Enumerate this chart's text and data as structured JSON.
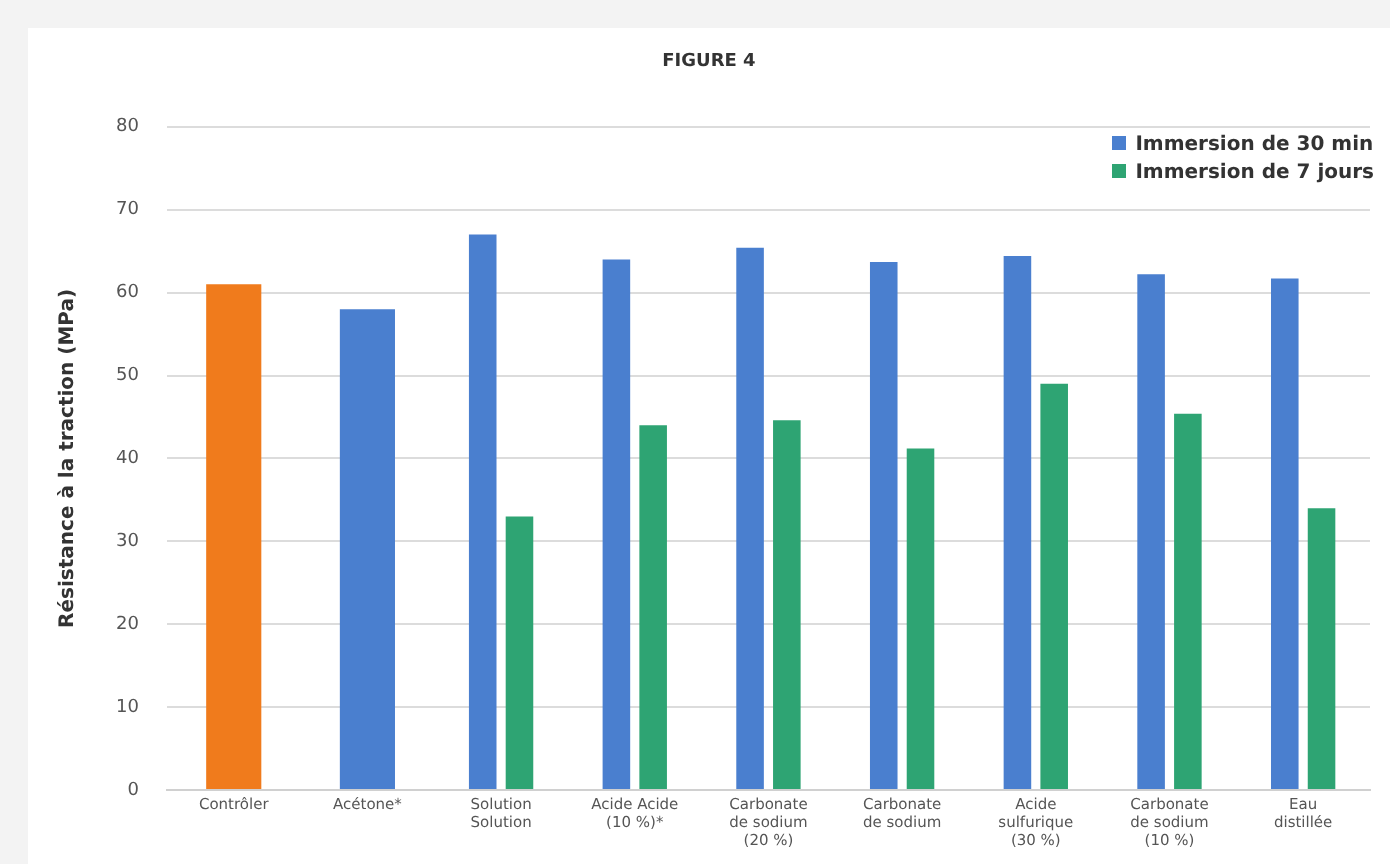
{
  "chart_data": {
    "type": "bar",
    "title": "FIGURE 4",
    "ylabel": "Résistance à la traction (MPa)",
    "categories": [
      "Contrôler",
      "Acétone*",
      "Solution Solution",
      "Acide Acide (10 %)*",
      "Carbonate de sodium (20 %)",
      "Carbonate de sodium",
      "Acide sulfurique (30 %)",
      "Carbonate de sodium (10 %)",
      "Eau distillée"
    ],
    "series": [
      {
        "name": "Immersion de 30 min",
        "color": "#4a7fcf",
        "colors": [
          "#f07b1c",
          "#4a7fcf",
          "#4a7fcf",
          "#4a7fcf",
          "#4a7fcf",
          "#4a7fcf",
          "#4a7fcf",
          "#4a7fcf",
          "#4a7fcf"
        ],
        "values": [
          61,
          58,
          67,
          64,
          65.4,
          63.7,
          64.4,
          62.2,
          61.7
        ]
      },
      {
        "name": "Immersion de 7 jours",
        "color": "#2ea473",
        "values": [
          null,
          null,
          33,
          44,
          44.6,
          41.2,
          49,
          45.4,
          34
        ]
      }
    ],
    "ylim": [
      0,
      80
    ],
    "yticks": [
      0,
      10,
      20,
      30,
      40,
      50,
      60,
      70,
      80
    ],
    "grid": "y",
    "legend": "top right"
  }
}
